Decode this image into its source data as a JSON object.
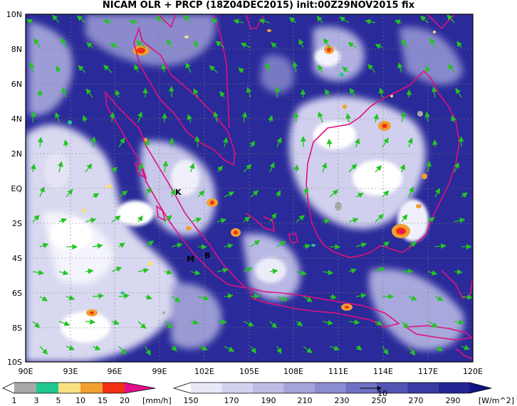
{
  "title": "NICAM OLR + PRCP (18Z04DEC2015) init:00Z29NOV2015 fix",
  "lat_labels": [
    "10N",
    "8N",
    "6N",
    "4N",
    "2N",
    "EQ",
    "2S",
    "4S",
    "6S",
    "8S",
    "10S"
  ],
  "lon_labels": [
    "90E",
    "93E",
    "96E",
    "99E",
    "102E",
    "105E",
    "108E",
    "111E",
    "114E",
    "117E",
    "120E"
  ],
  "place_markers": [
    "K",
    "M",
    "B"
  ],
  "precip_colorbar": {
    "ticks": [
      "1",
      "3",
      "5",
      "10",
      "15",
      "20"
    ],
    "unit": "[mm/h]",
    "colors": [
      "#ffffff",
      "#a8a8a8",
      "#20c890",
      "#f8e080",
      "#f0a030",
      "#f03010",
      "#e0108c"
    ]
  },
  "olr_colorbar": {
    "ticks": [
      "150",
      "170",
      "190",
      "210",
      "230",
      "250",
      "270",
      "290"
    ],
    "unit": "[W/m^2]",
    "colors": [
      "#ffffff",
      "#e8e8f6",
      "#d2d2ee",
      "#bcbce4",
      "#a4a4da",
      "#8c8cd0",
      "#7070c4",
      "#5454b4",
      "#3a3aa4",
      "#242494",
      "#141482"
    ]
  },
  "vector_reference_label": "10",
  "colors": {
    "coast": "#e0107c",
    "wind": "#22c422",
    "frame": "#000000"
  }
}
